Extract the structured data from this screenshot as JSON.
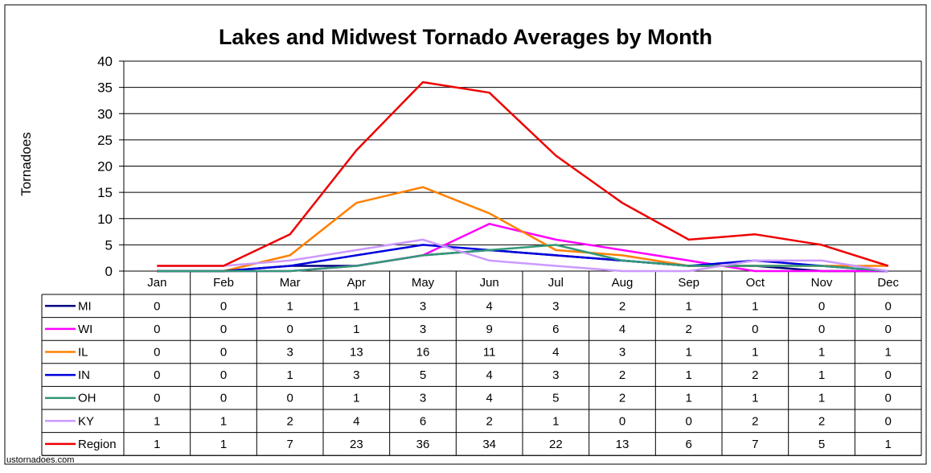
{
  "chart_data": {
    "type": "line",
    "title": "Lakes and Midwest Tornado Averages by Month",
    "ylabel": "Tornadoes",
    "xlabel": "",
    "ylim": [
      0,
      40
    ],
    "yticks": [
      0,
      5,
      10,
      15,
      20,
      25,
      30,
      35,
      40
    ],
    "grid": true,
    "legend": "data-table-below",
    "categories": [
      "Jan",
      "Feb",
      "Mar",
      "Apr",
      "May",
      "Jun",
      "Jul",
      "Aug",
      "Sep",
      "Oct",
      "Nov",
      "Dec"
    ],
    "series": [
      {
        "name": "MI",
        "color": "#000080",
        "values": [
          0,
          0,
          1,
          1,
          3,
          4,
          3,
          2,
          1,
          1,
          0,
          0
        ]
      },
      {
        "name": "WI",
        "color": "#ff00ff",
        "values": [
          0,
          0,
          0,
          1,
          3,
          9,
          6,
          4,
          2,
          0,
          0,
          0
        ]
      },
      {
        "name": "IL",
        "color": "#ff8000",
        "values": [
          0,
          0,
          3,
          13,
          16,
          11,
          4,
          3,
          1,
          1,
          1,
          1
        ]
      },
      {
        "name": "IN",
        "color": "#0000dd",
        "values": [
          0,
          0,
          1,
          3,
          5,
          4,
          3,
          2,
          1,
          2,
          1,
          0
        ]
      },
      {
        "name": "OH",
        "color": "#339977",
        "values": [
          0,
          0,
          0,
          1,
          3,
          4,
          5,
          2,
          1,
          1,
          1,
          0
        ]
      },
      {
        "name": "KY",
        "color": "#cc99ff",
        "values": [
          1,
          1,
          2,
          4,
          6,
          2,
          1,
          0,
          0,
          2,
          2,
          0
        ]
      },
      {
        "name": "Region",
        "color": "#ee0000",
        "values": [
          1,
          1,
          7,
          23,
          36,
          34,
          22,
          13,
          6,
          7,
          5,
          1
        ]
      }
    ],
    "source_credit": "ustornadoes.com"
  }
}
